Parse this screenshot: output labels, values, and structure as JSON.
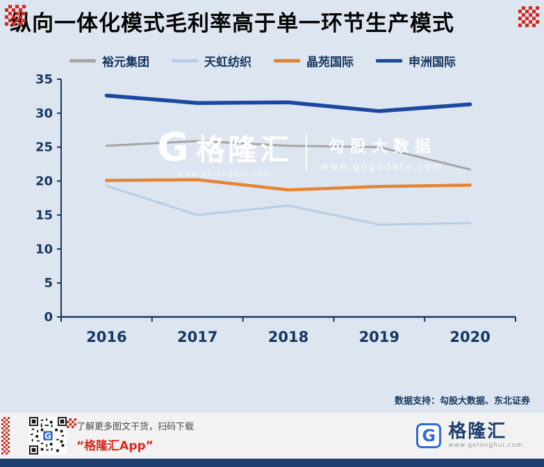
{
  "title": "纵向一体化模式毛利率高于单一环节生产模式",
  "chart_data": {
    "type": "line",
    "x": [
      "2016",
      "2017",
      "2018",
      "2019",
      "2020"
    ],
    "series": [
      {
        "name": "裕元集团",
        "color": "#a6a6a6",
        "values": [
          25.2,
          25.9,
          25.2,
          25.0,
          21.7
        ]
      },
      {
        "name": "天虹纺织",
        "color": "#b9cde6",
        "values": [
          19.3,
          15.0,
          16.4,
          13.6,
          13.8
        ]
      },
      {
        "name": "晶苑国际",
        "color": "#e78430",
        "values": [
          20.1,
          20.2,
          18.7,
          19.2,
          19.4
        ]
      },
      {
        "name": "申洲国际",
        "color": "#1b48a0",
        "values": [
          32.6,
          31.5,
          31.6,
          30.3,
          31.3
        ]
      }
    ],
    "ylim": [
      0,
      35
    ],
    "ytick_step": 5,
    "yticks": [
      0,
      5,
      10,
      15,
      20,
      25,
      30,
      35
    ],
    "grid": false,
    "legend_position": "top",
    "title": "纵向一体化模式毛利率高于单一环节生产模式",
    "xlabel": "",
    "ylabel": ""
  },
  "watermark": {
    "logo_letter": "G",
    "brand": "格隆汇",
    "brand_url": "www.gelonghui.com",
    "right_title": "勾股大数据",
    "right_url": "www.gogudata.com"
  },
  "credit": "数据支持：勾股大数据、东北证券",
  "footer": {
    "promo_line1": "了解更多图文干货，扫码下载",
    "promo_line2": "“格隆汇App”",
    "logo_letter": "G",
    "brand": "格隆汇",
    "brand_url": "www.gelonghui.com"
  },
  "colors": {
    "background": "#dce5f0",
    "axis": "#17375e",
    "accent_red": "#d8291f",
    "bottom_bar": "#1e3f71",
    "footer_background": "#f2f2f2",
    "logo_blue": "#2f6bd4"
  }
}
